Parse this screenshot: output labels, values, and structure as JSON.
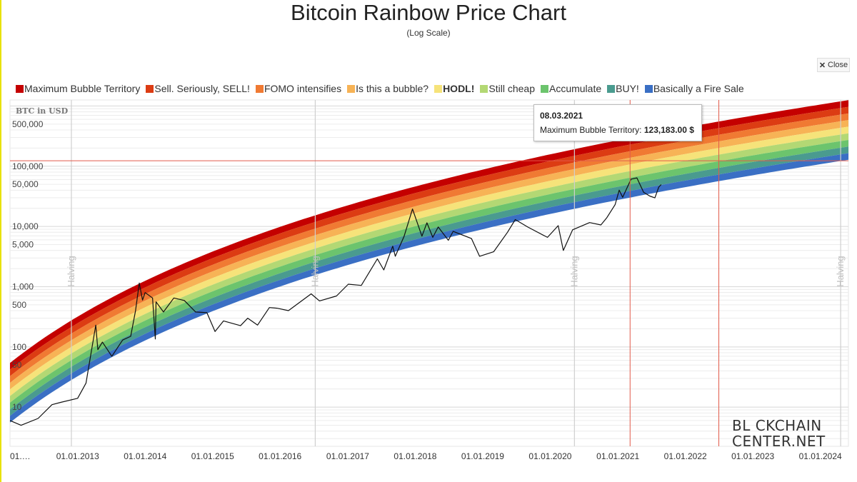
{
  "chart_data": {
    "type": "line",
    "title": "Bitcoin Rainbow Price Chart",
    "subtitle": "(Log Scale)",
    "y_axis_title": "BTC in USD",
    "y_scale": "log",
    "y_ticks": [
      "500,000",
      "100,000",
      "50,000",
      "10,000",
      "5,000",
      "1,000",
      "500",
      "100",
      "50",
      "10"
    ],
    "x_ticks": [
      "01.…",
      "01.01.2013",
      "01.01.2014",
      "01.01.2015",
      "01.01.2016",
      "01.01.2017",
      "01.01.2018",
      "01.01.2019",
      "01.01.2020",
      "01.01.2021",
      "01.01.2022",
      "01.01.2023",
      "01.01.2024"
    ],
    "x_range": [
      "2012-01-01",
      "2024-06-01"
    ],
    "legend_position": "top",
    "grid": true,
    "bands": [
      {
        "name": "Maximum Bubble Territory",
        "color": "#c40000"
      },
      {
        "name": "Sell. Seriously, SELL!",
        "color": "#dc3c13"
      },
      {
        "name": "FOMO intensifies",
        "color": "#f07a33"
      },
      {
        "name": "Is this a bubble?",
        "color": "#f7b356"
      },
      {
        "name": "HODL!",
        "color": "#f6e37a",
        "bold": true
      },
      {
        "name": "Still cheap",
        "color": "#b3d874"
      },
      {
        "name": "Accumulate",
        "color": "#6cc46d"
      },
      {
        "name": "BUY!",
        "color": "#4a9b8f"
      },
      {
        "name": "Basically a Fire Sale",
        "color": "#3a6fc4"
      }
    ],
    "halvings": [
      {
        "label": "Halving",
        "date": "2012-11-28"
      },
      {
        "label": "Halving",
        "date": "2016-07-09"
      },
      {
        "label": "Halving",
        "date": "2020-05-11"
      },
      {
        "label": "Halving",
        "date": "2024-04-20"
      }
    ],
    "price_series": {
      "name": "BTC price",
      "points": [
        [
          "2012-01-01",
          6
        ],
        [
          "2012-03-01",
          5
        ],
        [
          "2012-06-01",
          6.5
        ],
        [
          "2012-08-15",
          11
        ],
        [
          "2012-10-01",
          12
        ],
        [
          "2013-01-01",
          14
        ],
        [
          "2013-02-15",
          25
        ],
        [
          "2013-04-09",
          230
        ],
        [
          "2013-04-20",
          90
        ],
        [
          "2013-05-15",
          120
        ],
        [
          "2013-07-05",
          70
        ],
        [
          "2013-09-01",
          130
        ],
        [
          "2013-10-15",
          150
        ],
        [
          "2013-11-10",
          400
        ],
        [
          "2013-11-30",
          1150
        ],
        [
          "2013-12-18",
          600
        ],
        [
          "2014-01-01",
          800
        ],
        [
          "2014-02-10",
          650
        ],
        [
          "2014-02-25",
          135
        ],
        [
          "2014-03-01",
          560
        ],
        [
          "2014-04-10",
          380
        ],
        [
          "2014-06-05",
          650
        ],
        [
          "2014-08-01",
          590
        ],
        [
          "2014-10-01",
          380
        ],
        [
          "2014-12-01",
          370
        ],
        [
          "2015-01-14",
          180
        ],
        [
          "2015-03-01",
          270
        ],
        [
          "2015-06-01",
          225
        ],
        [
          "2015-07-10",
          300
        ],
        [
          "2015-09-01",
          230
        ],
        [
          "2015-11-04",
          450
        ],
        [
          "2015-12-15",
          440
        ],
        [
          "2016-02-15",
          400
        ],
        [
          "2016-06-17",
          760
        ],
        [
          "2016-08-01",
          580
        ],
        [
          "2016-11-01",
          700
        ],
        [
          "2017-01-04",
          1100
        ],
        [
          "2017-03-15",
          1050
        ],
        [
          "2017-06-10",
          2900
        ],
        [
          "2017-07-15",
          1900
        ],
        [
          "2017-09-01",
          4700
        ],
        [
          "2017-09-15",
          3200
        ],
        [
          "2017-11-01",
          6800
        ],
        [
          "2017-12-17",
          19500
        ],
        [
          "2018-02-06",
          6900
        ],
        [
          "2018-03-05",
          11500
        ],
        [
          "2018-04-06",
          6600
        ],
        [
          "2018-05-05",
          9800
        ],
        [
          "2018-06-29",
          5900
        ],
        [
          "2018-07-25",
          8300
        ],
        [
          "2018-11-01",
          6300
        ],
        [
          "2018-12-15",
          3200
        ],
        [
          "2019-03-01",
          3800
        ],
        [
          "2019-05-15",
          8000
        ],
        [
          "2019-06-26",
          13000
        ],
        [
          "2019-09-01",
          9800
        ],
        [
          "2019-12-17",
          6600
        ],
        [
          "2020-02-13",
          10300
        ],
        [
          "2020-03-12",
          4000
        ],
        [
          "2020-05-01",
          8800
        ],
        [
          "2020-08-01",
          11600
        ],
        [
          "2020-10-01",
          10600
        ],
        [
          "2020-11-01",
          13800
        ],
        [
          "2020-12-17",
          23000
        ],
        [
          "2021-01-08",
          40000
        ],
        [
          "2021-01-27",
          30500
        ],
        [
          "2021-03-13",
          61000
        ],
        [
          "2021-04-14",
          64000
        ],
        [
          "2021-05-20",
          37000
        ],
        [
          "2021-06-22",
          32000
        ],
        [
          "2021-07-20",
          29800
        ],
        [
          "2021-08-10",
          45000
        ],
        [
          "2021-08-23",
          49500
        ]
      ]
    },
    "tooltip": {
      "date": "08.03.2021",
      "label": "Maximum Bubble Territory:",
      "value": "123,183.00 $"
    }
  },
  "ui": {
    "close_label": "Close",
    "brand_line1": "BL  CKCHAIN",
    "brand_line2": "CENTER.NET"
  }
}
